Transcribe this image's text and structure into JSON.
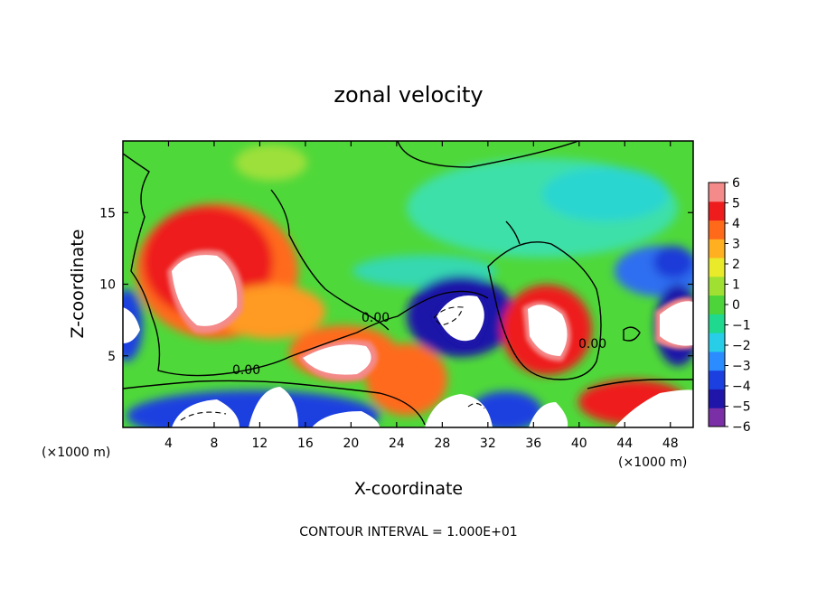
{
  "chart_data": {
    "type": "heatmap",
    "title": "zonal velocity",
    "xlabel": "X-coordinate",
    "ylabel": "Z-coordinate",
    "x_unit": "(×1000 m)",
    "y_unit": "(×1000 m)",
    "xlim": [
      0,
      50
    ],
    "ylim": [
      0,
      20
    ],
    "x_ticks": [
      "4",
      "8",
      "12",
      "16",
      "20",
      "24",
      "28",
      "32",
      "36",
      "40",
      "44",
      "48"
    ],
    "y_ticks": [
      "5",
      "10",
      "15"
    ],
    "colorbar": {
      "ticks": [
        "6",
        "5",
        "4",
        "3",
        "2",
        "1",
        "0",
        "−1",
        "−2",
        "−3",
        "−4",
        "−5",
        "−6"
      ],
      "min": -6,
      "max": 6
    },
    "contour_label": "0.00",
    "note": "CONTOUR INTERVAL = 1.000E+01"
  },
  "colors": {
    "levels": [
      "#7b2fa6",
      "#1f15a8",
      "#1c3fe0",
      "#2a8cff",
      "#28cde8",
      "#1ed98e",
      "#4cd43a",
      "#a0e032",
      "#e8ea2a",
      "#ffb020",
      "#ff6a1a",
      "#ee1c1c",
      "#f48a8a"
    ],
    "contour": "#000000"
  }
}
